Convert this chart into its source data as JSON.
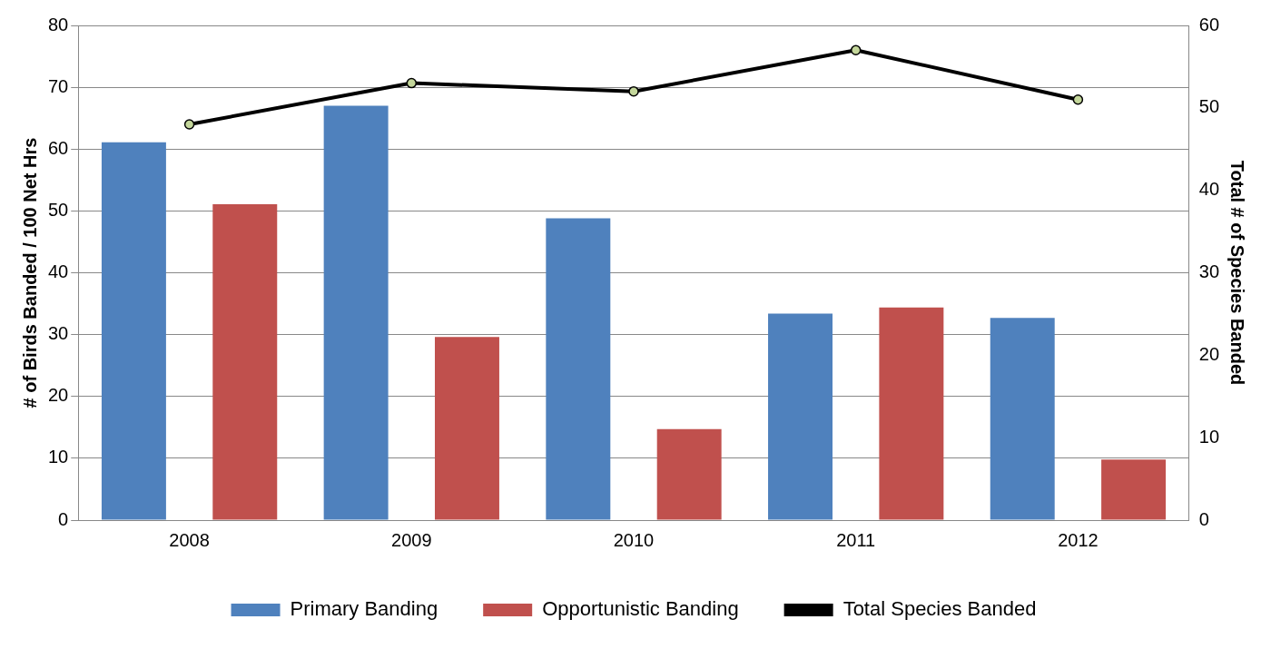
{
  "chart_data": {
    "type": "bar",
    "categories": [
      "2008",
      "2009",
      "2010",
      "2011",
      "2012"
    ],
    "ylabel": "# of Birds Banded / 100 Net Hrs",
    "y2label": "Total # of Species Banded",
    "ylim": [
      0,
      80
    ],
    "yticks": [
      0,
      10,
      20,
      30,
      40,
      50,
      60,
      70,
      80
    ],
    "y2lim": [
      0,
      60
    ],
    "y2ticks": [
      0,
      10,
      20,
      30,
      40,
      50,
      60
    ],
    "grid": "y",
    "legend": "bottom",
    "series": [
      {
        "name": "Primary Banding",
        "color": "#4f81bd",
        "values": [
          61.1,
          67.0,
          48.8,
          33.4,
          32.7
        ]
      },
      {
        "name": "Opportunistic Banding",
        "color": "#c0504d",
        "values": [
          51.1,
          29.6,
          14.7,
          34.4,
          9.8
        ]
      },
      {
        "name": "Total Species Banded",
        "type": "line",
        "axis": "y2",
        "color": "#000000",
        "marker": "circle",
        "values": [
          48,
          53,
          52,
          57,
          51
        ]
      }
    ]
  }
}
